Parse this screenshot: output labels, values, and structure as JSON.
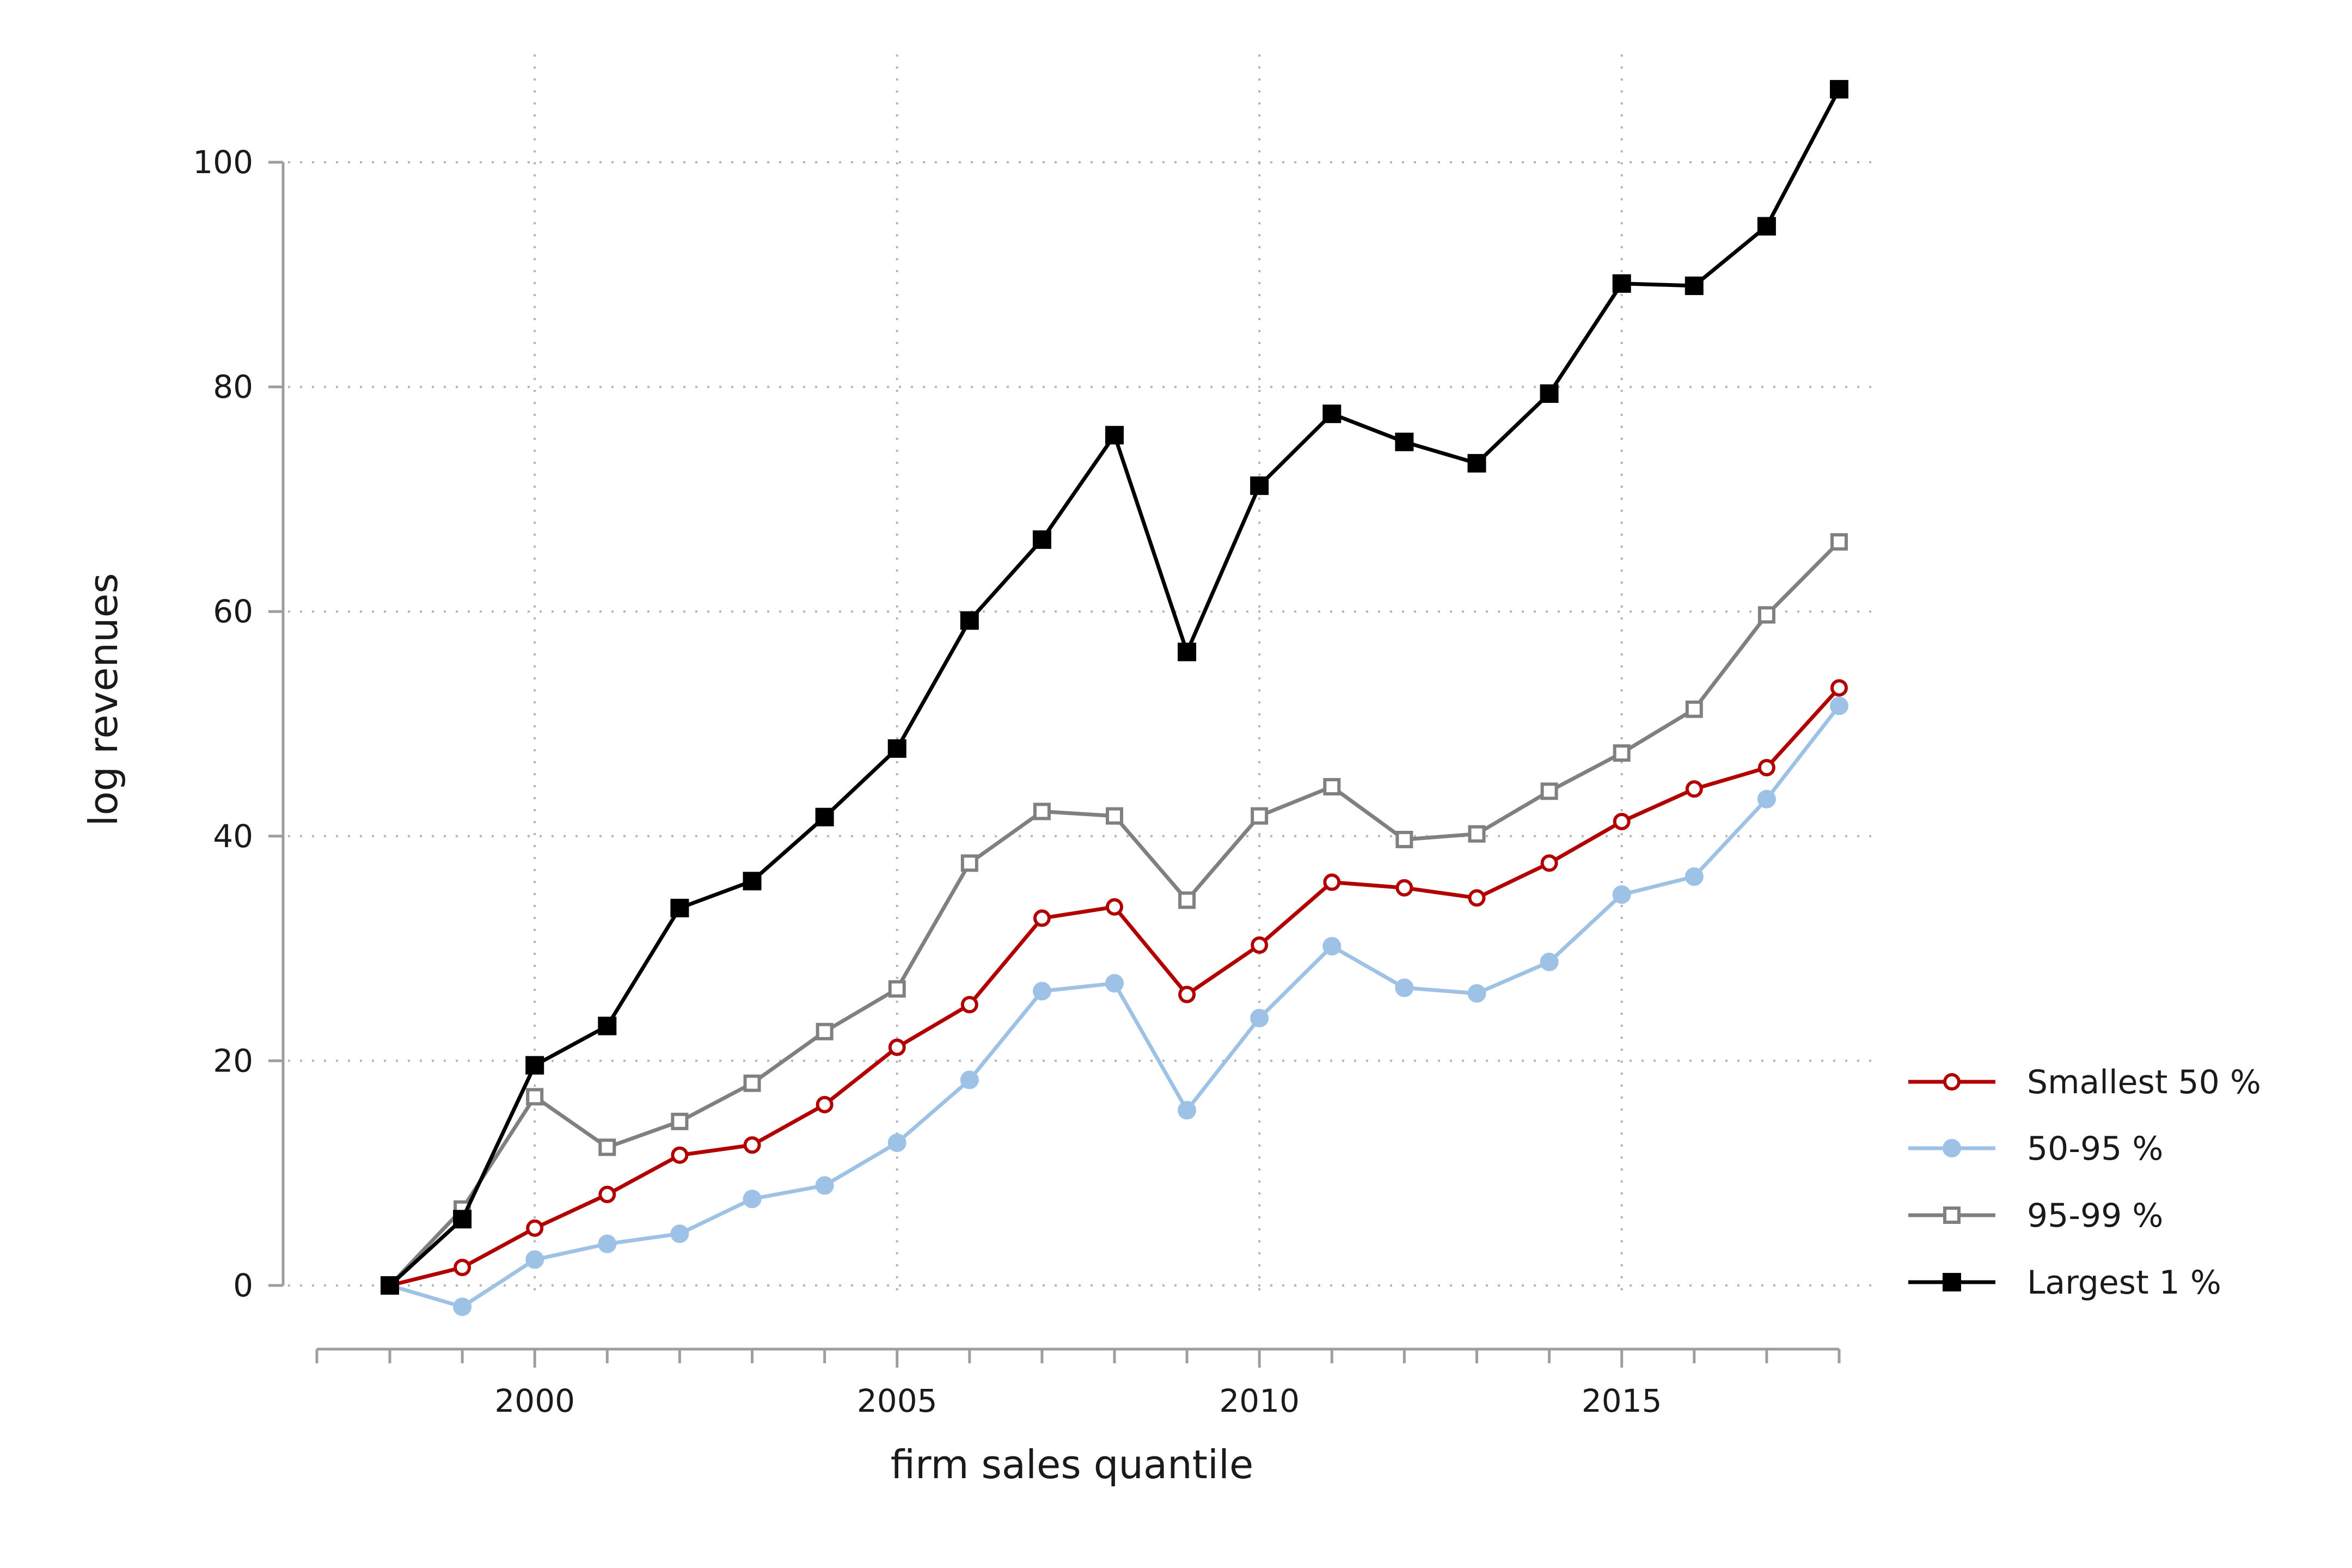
{
  "chart_data": {
    "type": "line",
    "xlabel": "firm sales quantile",
    "ylabel": "log revenues",
    "xlim": [
      1997,
      2018.2
    ],
    "ylim": [
      -5,
      110
    ],
    "xticks": [
      2000,
      2005,
      2010,
      2015
    ],
    "yticks": [
      0,
      20,
      40,
      60,
      80,
      100
    ],
    "grid": true,
    "legend_position": "right",
    "x": [
      1998,
      1999,
      2000,
      2001,
      2002,
      2003,
      2004,
      2005,
      2006,
      2007,
      2008,
      2009,
      2010,
      2011,
      2012,
      2013,
      2014,
      2015,
      2016,
      2017,
      2018
    ],
    "series": [
      {
        "name": "Smallest 50 %",
        "color": "#b20000",
        "marker": "circle-open",
        "values": [
          0,
          1.6,
          5.1,
          8.1,
          11.6,
          12.5,
          16.1,
          21.2,
          25.0,
          32.7,
          33.7,
          25.9,
          30.3,
          35.9,
          35.4,
          34.5,
          37.6,
          41.3,
          44.2,
          46.1,
          53.2
        ]
      },
      {
        "name": "50-95 %",
        "color": "#9ec2e6",
        "marker": "circle-filled",
        "values": [
          0,
          -1.9,
          2.3,
          3.7,
          4.6,
          7.7,
          8.9,
          12.7,
          18.3,
          26.2,
          26.9,
          15.6,
          23.8,
          30.2,
          26.5,
          26.0,
          28.8,
          34.8,
          36.4,
          43.3,
          51.6
        ]
      },
      {
        "name": "95-99 %",
        "color": "#808080",
        "marker": "square-open",
        "values": [
          0,
          6.8,
          16.8,
          12.3,
          14.6,
          18.0,
          22.6,
          26.4,
          37.6,
          42.2,
          41.8,
          34.3,
          41.8,
          44.4,
          39.7,
          40.2,
          44.0,
          47.4,
          51.3,
          59.7,
          66.2
        ]
      },
      {
        "name": "Largest 1 %",
        "color": "#000000",
        "marker": "square-filled",
        "values": [
          0,
          5.9,
          19.6,
          23.1,
          33.6,
          36.0,
          41.7,
          47.8,
          59.2,
          66.4,
          75.7,
          56.4,
          71.2,
          77.6,
          75.1,
          73.2,
          79.4,
          89.2,
          89.0,
          94.3,
          106.5
        ]
      }
    ]
  }
}
